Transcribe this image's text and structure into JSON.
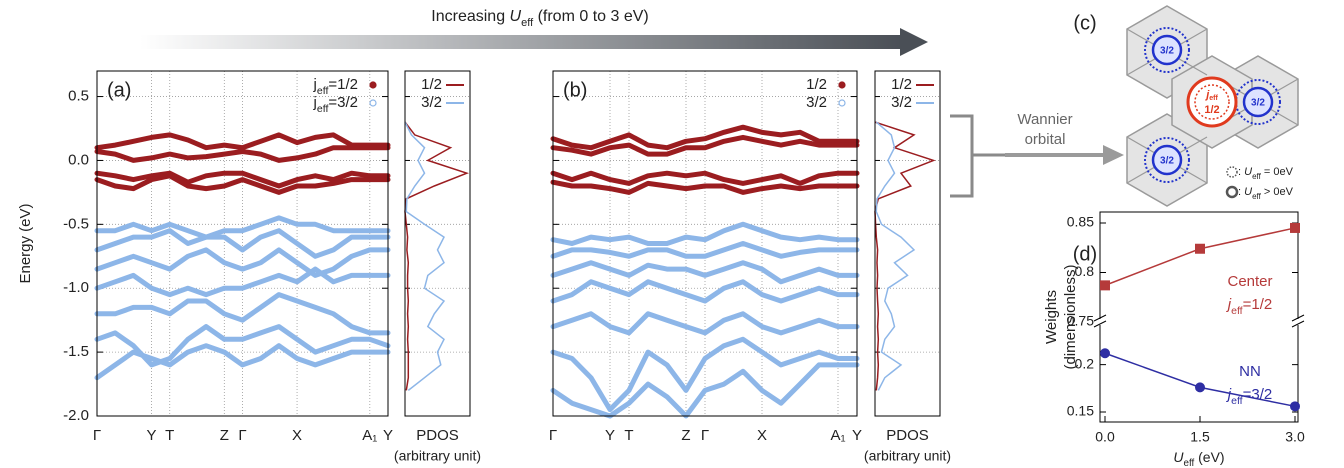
{
  "header": {
    "parts": [
      "Increasing ",
      "U",
      "eff",
      " (from 0 to 3 eV)"
    ]
  },
  "annotation": {
    "lines": [
      "Wannier",
      "orbital"
    ]
  },
  "diagram_c": {
    "label": "(c)",
    "hex_labels": [
      "3/2",
      "3/2",
      "3/2"
    ],
    "center_parts": [
      "j",
      "eff",
      "1/2"
    ],
    "legend": [
      {
        "parts": [
          ": ",
          "U",
          "eff",
          " = 0eV"
        ]
      },
      {
        "parts": [
          ": ",
          "U",
          "eff",
          " > 0eV"
        ]
      }
    ]
  },
  "chart_data": [
    {
      "type": "band",
      "panel_label": "(a)",
      "ylabel": "Energy (eV)",
      "show_ytick_labels": true,
      "grid": true,
      "categories": [
        "Γ",
        null,
        null,
        "Y",
        "T",
        null,
        null,
        "Z",
        "Γ",
        null,
        null,
        "X",
        null,
        null,
        null,
        "A₁",
        "Y"
      ],
      "ylim": [
        -2.0,
        0.7
      ],
      "yticks": [
        0.5,
        {
          "value": 0,
          "label": "0.0"
        },
        -0.5,
        {
          "value": -1,
          "label": "-1.0"
        },
        -1.5,
        {
          "value": -2,
          "label": "-2.0"
        }
      ],
      "series": [
        {
          "name_parts": [
            "j",
            "eff",
            "=3/2"
          ],
          "color": "#8db6e8",
          "marker": "open",
          "bands": [
            [
              -0.55,
              -0.55,
              -0.5,
              -0.55,
              -0.5,
              -0.55,
              -0.6,
              -0.55,
              -0.55,
              -0.5,
              -0.45,
              -0.5,
              -0.5,
              -0.55,
              -0.55,
              -0.55,
              -0.55
            ],
            [
              -0.7,
              -0.65,
              -0.6,
              -0.6,
              -0.55,
              -0.65,
              -0.6,
              -0.6,
              -0.7,
              -0.6,
              -0.55,
              -0.65,
              -0.75,
              -0.7,
              -0.6,
              -0.6,
              -0.6
            ],
            [
              -0.85,
              -0.8,
              -0.75,
              -0.8,
              -0.85,
              -0.75,
              -0.7,
              -0.8,
              -0.85,
              -0.8,
              -0.7,
              -0.8,
              -0.9,
              -0.85,
              -0.75,
              -0.7,
              -0.7
            ],
            [
              -1.0,
              -0.95,
              -0.9,
              -1.0,
              -1.05,
              -1.0,
              -1.05,
              -1.0,
              -1.0,
              -0.95,
              -0.9,
              -0.95,
              -0.85,
              -0.95,
              -0.9,
              -0.9,
              -0.9
            ],
            [
              -1.2,
              -1.2,
              -1.15,
              -1.15,
              -1.2,
              -1.1,
              -1.1,
              -1.2,
              -1.25,
              -1.15,
              -1.05,
              -1.1,
              -1.15,
              -1.2,
              -1.3,
              -1.35,
              -1.35
            ],
            [
              -1.4,
              -1.35,
              -1.45,
              -1.6,
              -1.55,
              -1.4,
              -1.3,
              -1.4,
              -1.4,
              -1.35,
              -1.3,
              -1.4,
              -1.5,
              -1.45,
              -1.4,
              -1.4,
              -1.45
            ],
            [
              -1.7,
              -1.6,
              -1.5,
              -1.55,
              -1.6,
              -1.5,
              -1.45,
              -1.5,
              -1.6,
              -1.55,
              -1.45,
              -1.55,
              -1.6,
              -1.55,
              -1.5,
              -1.5,
              -1.5
            ]
          ]
        },
        {
          "name_parts": [
            "j",
            "eff",
            "=1/2"
          ],
          "color": "#9b1d20",
          "marker": "filled",
          "bands": [
            [
              0.1,
              0.12,
              0.15,
              0.18,
              0.2,
              0.16,
              0.1,
              0.12,
              0.1,
              0.15,
              0.2,
              0.14,
              0.18,
              0.2,
              0.12,
              0.12,
              0.12
            ],
            [
              0.07,
              0.05,
              0.0,
              0.02,
              0.05,
              0.02,
              0.03,
              0.05,
              0.07,
              0.05,
              0.0,
              0.02,
              0.05,
              0.1,
              0.1,
              0.1,
              0.1
            ],
            [
              -0.1,
              -0.12,
              -0.15,
              -0.12,
              -0.1,
              -0.17,
              -0.12,
              -0.1,
              -0.1,
              -0.15,
              -0.2,
              -0.15,
              -0.12,
              -0.15,
              -0.1,
              -0.12,
              -0.12
            ],
            [
              -0.15,
              -0.2,
              -0.22,
              -0.15,
              -0.12,
              -0.2,
              -0.22,
              -0.2,
              -0.15,
              -0.2,
              -0.25,
              -0.2,
              -0.2,
              -0.18,
              -0.15,
              -0.15,
              -0.15
            ]
          ]
        }
      ]
    },
    {
      "type": "pdos",
      "grid": true,
      "xlabel": "PDOS",
      "xlabel2": "(arbitrary unit)",
      "xlim": [
        0,
        1
      ],
      "ylim": [
        -2.0,
        0.7
      ],
      "yticks": [
        0.5,
        {
          "value": 0,
          "label": "0.0"
        },
        -0.5,
        {
          "value": -1,
          "label": "-1.0"
        },
        -1.5,
        {
          "value": -2,
          "label": "-2.0"
        }
      ],
      "energy": [
        -1.8,
        -1.7,
        -1.6,
        -1.5,
        -1.4,
        -1.3,
        -1.2,
        -1.1,
        -1.0,
        -0.9,
        -0.8,
        -0.7,
        -0.6,
        -0.5,
        -0.4,
        -0.3,
        -0.2,
        -0.1,
        0.0,
        0.1,
        0.2,
        0.3
      ],
      "series": [
        {
          "name": "1/2",
          "color": "#9b1d20",
          "values": [
            0.02,
            0.05,
            0.05,
            0.05,
            0.04,
            0.05,
            0.04,
            0.05,
            0.04,
            0.04,
            0.05,
            0.03,
            0.04,
            0.02,
            0,
            0.02,
            0.45,
            0.95,
            0.35,
            0.7,
            0.15,
            0
          ]
        },
        {
          "name": "3/2",
          "color": "#8db6e8",
          "values": [
            0.05,
            0.3,
            0.55,
            0.5,
            0.6,
            0.35,
            0.45,
            0.6,
            0.3,
            0.35,
            0.6,
            0.5,
            0.6,
            0.3,
            0.02,
            0.03,
            0.15,
            0.3,
            0.2,
            0.3,
            0.1,
            0
          ]
        }
      ]
    },
    {
      "type": "band",
      "panel_label": "(b)",
      "show_ytick_labels": false,
      "grid": true,
      "categories": [
        "Γ",
        null,
        null,
        "Y",
        "T",
        null,
        null,
        "Z",
        "Γ",
        null,
        null,
        "X",
        null,
        null,
        null,
        "A₁",
        "Y"
      ],
      "ylim": [
        -2.0,
        0.7
      ],
      "yticks": [
        0.5,
        {
          "value": 0,
          "label": "0.0"
        },
        -0.5,
        {
          "value": -1,
          "label": "-1.0"
        },
        -1.5,
        {
          "value": -2,
          "label": "-2.0"
        }
      ],
      "series": [
        {
          "name": "3/2",
          "color": "#8db6e8",
          "marker": "open",
          "bands": [
            [
              -0.62,
              -0.65,
              -0.6,
              -0.62,
              -0.6,
              -0.65,
              -0.65,
              -0.6,
              -0.62,
              -0.55,
              -0.5,
              -0.55,
              -0.6,
              -0.62,
              -0.6,
              -0.62,
              -0.62
            ],
            [
              -0.75,
              -0.7,
              -0.7,
              -0.72,
              -0.75,
              -0.7,
              -0.7,
              -0.75,
              -0.75,
              -0.7,
              -0.65,
              -0.7,
              -0.75,
              -0.72,
              -0.7,
              -0.7,
              -0.7
            ],
            [
              -0.9,
              -0.85,
              -0.8,
              -0.85,
              -0.9,
              -0.82,
              -0.85,
              -0.85,
              -0.9,
              -0.85,
              -0.8,
              -0.85,
              -0.95,
              -0.9,
              -0.85,
              -0.9,
              -0.9
            ],
            [
              -1.1,
              -1.05,
              -0.95,
              -1.0,
              -1.05,
              -0.95,
              -1.0,
              -1.05,
              -1.1,
              -1.0,
              -0.95,
              -1.05,
              -1.1,
              -1.05,
              -1.0,
              -1.05,
              -1.05
            ],
            [
              -1.3,
              -1.25,
              -1.2,
              -1.3,
              -1.35,
              -1.2,
              -1.25,
              -1.3,
              -1.35,
              -1.25,
              -1.2,
              -1.3,
              -1.35,
              -1.3,
              -1.25,
              -1.3,
              -1.3
            ],
            [
              -1.5,
              -1.55,
              -1.7,
              -1.95,
              -1.8,
              -1.5,
              -1.6,
              -1.8,
              -1.55,
              -1.45,
              -1.4,
              -1.5,
              -1.6,
              -1.55,
              -1.5,
              -1.55,
              -1.55
            ],
            [
              -1.8,
              -1.9,
              -1.95,
              -2.0,
              -1.9,
              -1.75,
              -1.85,
              -2.0,
              -1.8,
              -1.75,
              -1.65,
              -1.8,
              -1.9,
              -1.75,
              -1.6,
              -1.6,
              -1.6
            ]
          ]
        },
        {
          "name": "1/2",
          "color": "#9b1d20",
          "marker": "filled",
          "bands": [
            [
              0.17,
              0.12,
              0.1,
              0.15,
              0.2,
              0.12,
              0.1,
              0.15,
              0.17,
              0.22,
              0.26,
              0.22,
              0.2,
              0.22,
              0.15,
              0.15,
              0.15
            ],
            [
              0.1,
              0.08,
              0.05,
              0.1,
              0.12,
              0.05,
              0.05,
              0.1,
              0.1,
              0.15,
              0.18,
              0.15,
              0.12,
              0.15,
              0.12,
              0.12,
              0.12
            ],
            [
              -0.1,
              -0.15,
              -0.1,
              -0.15,
              -0.18,
              -0.12,
              -0.1,
              -0.12,
              -0.1,
              -0.15,
              -0.18,
              -0.15,
              -0.12,
              -0.18,
              -0.12,
              -0.1,
              -0.1
            ],
            [
              -0.17,
              -0.2,
              -0.2,
              -0.22,
              -0.25,
              -0.18,
              -0.2,
              -0.22,
              -0.2,
              -0.2,
              -0.25,
              -0.22,
              -0.2,
              -0.22,
              -0.2,
              -0.2,
              -0.2
            ]
          ]
        }
      ]
    },
    {
      "type": "pdos",
      "grid": true,
      "xlabel": "PDOS",
      "xlabel2": "(arbitrary unit)",
      "xlim": [
        0,
        1
      ],
      "ylim": [
        -2.0,
        0.7
      ],
      "yticks": [
        0.5,
        {
          "value": 0,
          "label": "0.0"
        },
        -0.5,
        {
          "value": -1,
          "label": "-1.0"
        },
        -1.5,
        {
          "value": -2,
          "label": "-2.0"
        }
      ],
      "energy": [
        -1.8,
        -1.7,
        -1.6,
        -1.5,
        -1.4,
        -1.3,
        -1.2,
        -1.1,
        -1.0,
        -0.9,
        -0.8,
        -0.7,
        -0.6,
        -0.5,
        -0.4,
        -0.3,
        -0.2,
        -0.1,
        0.0,
        0.1,
        0.2,
        0.3
      ],
      "series": [
        {
          "name": "1/2",
          "color": "#9b1d20",
          "values": [
            0.02,
            0.04,
            0.05,
            0.04,
            0.05,
            0.04,
            0.05,
            0.04,
            0.03,
            0.04,
            0.03,
            0.04,
            0.02,
            0.01,
            0,
            0.05,
            0.55,
            0.4,
            0.9,
            0.3,
            0.6,
            0
          ]
        },
        {
          "name": "3/2",
          "color": "#8db6e8",
          "values": [
            0.05,
            0.15,
            0.4,
            0.1,
            0.15,
            0.3,
            0.25,
            0.15,
            0.2,
            0.5,
            0.3,
            0.6,
            0.4,
            0.1,
            0.02,
            0.03,
            0.15,
            0.3,
            0.2,
            0.3,
            0.25,
            0.02
          ]
        }
      ]
    },
    {
      "type": "weights",
      "panel_label": "(d)",
      "ylabel_lines": [
        "Weights",
        "(dimensionless)"
      ],
      "xlabel_parts": [
        "U",
        "eff",
        " (eV)"
      ],
      "x": [
        0,
        1.5,
        3.0
      ],
      "xlim": [
        0,
        3.0
      ],
      "xticks": [
        {
          "value": 0,
          "label": "0.0"
        },
        1.5,
        {
          "value": 3,
          "label": "3.0"
        }
      ],
      "ylim": [
        0.75,
        0.85
      ],
      "yticks": [
        0.75,
        0.8,
        0.85
      ],
      "y2lim": [
        0.15,
        0.245
      ],
      "y2ticks": [
        0.15,
        0.2
      ],
      "series": [
        {
          "name": "Center",
          "sub_parts": [
            "j",
            "eff",
            "=1/2"
          ],
          "color": "#b53a3a",
          "marker": "square",
          "values": [
            0.787,
            0.824,
            0.845
          ]
        },
        {
          "name": "NN",
          "sub_parts": [
            "j",
            "eff",
            "=3/2"
          ],
          "color": "#2e2ea3",
          "marker": "circle",
          "axis": "y2",
          "values": [
            0.212,
            0.176,
            0.156
          ]
        }
      ]
    }
  ]
}
